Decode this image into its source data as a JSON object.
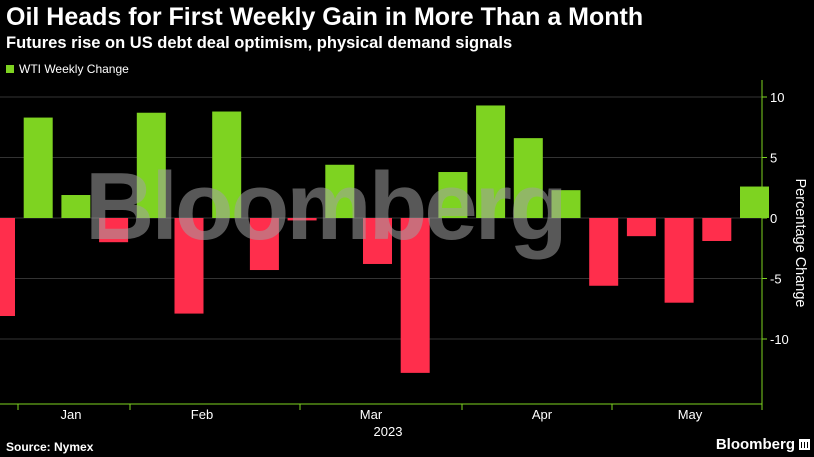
{
  "header": {
    "title": "Oil Heads for First Weekly Gain in More Than a Month",
    "subtitle": "Futures rise on US debt deal optimism, physical demand signals"
  },
  "legend": {
    "label": "WTI Weekly Change"
  },
  "watermark": "Bloomberg",
  "footer": {
    "source": "Source: Nymex",
    "brand": "Bloomberg"
  },
  "colors": {
    "positive": "#7ed321",
    "negative": "#ff2e4c",
    "axis": "#7ed321",
    "background": "#000000"
  },
  "chart_data": {
    "type": "bar",
    "ylabel": "Percentage Change",
    "ylim": [
      -15,
      11
    ],
    "yticks": [
      10,
      5,
      0,
      -5,
      -10
    ],
    "xtick_labels": [
      "Jan",
      "Feb",
      "Mar",
      "Apr",
      "May"
    ],
    "year_label": "2023",
    "series": [
      {
        "name": "WTI Weekly Change",
        "values": [
          -8.1,
          8.3,
          1.9,
          -2.0,
          8.7,
          -7.9,
          8.8,
          -4.3,
          -0.2,
          4.4,
          -3.8,
          -12.8,
          3.8,
          9.3,
          6.6,
          2.3,
          -5.6,
          -1.5,
          -7.0,
          -1.9,
          2.6
        ]
      }
    ]
  }
}
